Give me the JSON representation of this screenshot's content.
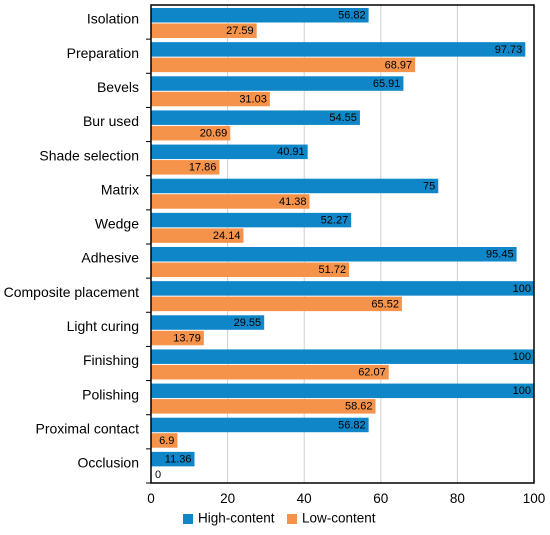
{
  "chart_data": {
    "type": "bar",
    "orientation": "horizontal",
    "title": "",
    "xlabel": "",
    "ylabel": "",
    "xlim": [
      0,
      100
    ],
    "xticks": [
      0,
      20,
      40,
      60,
      80,
      100
    ],
    "grid": "vertical",
    "legend_position": "bottom",
    "categories": [
      "Isolation",
      "Preparation",
      "Bevels",
      "Bur used",
      "Shade selection",
      "Matrix",
      "Wedge",
      "Adhesive",
      "Composite placement",
      "Light curing",
      "Finishing",
      "Polishing",
      "Proximal contact",
      "Occlusion"
    ],
    "series": [
      {
        "name": "High-content",
        "color": "#0e86c8",
        "values": [
          56.82,
          97.73,
          65.91,
          54.55,
          40.91,
          75,
          52.27,
          95.45,
          100,
          29.55,
          100,
          100,
          56.82,
          11.36
        ]
      },
      {
        "name": "Low-content",
        "color": "#f5934a",
        "values": [
          27.59,
          68.97,
          31.03,
          20.69,
          17.86,
          41.38,
          24.14,
          51.72,
          65.52,
          13.79,
          62.07,
          58.62,
          6.9,
          0
        ]
      }
    ]
  }
}
